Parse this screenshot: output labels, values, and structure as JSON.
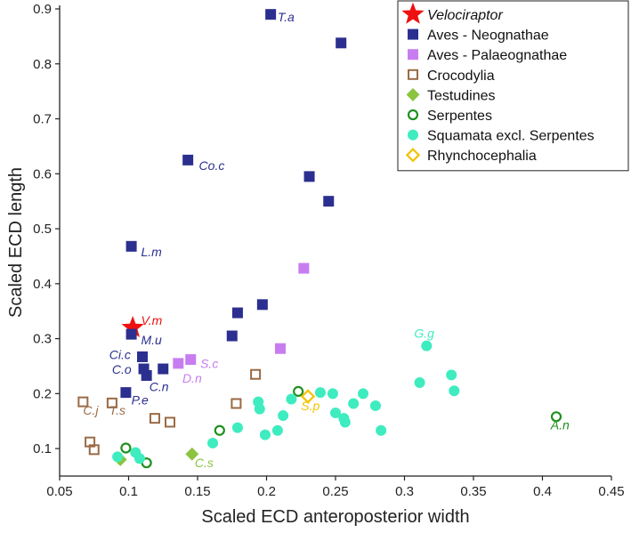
{
  "chart_data": {
    "type": "scatter",
    "xlabel": "Scaled ECD anteroposterior width",
    "ylabel": "Scaled ECD length",
    "xlim": [
      0.05,
      0.45
    ],
    "ylim": [
      0.05,
      0.9
    ],
    "xticks": [
      "0.05",
      "0.1",
      "0.15",
      "0.2",
      "0.25",
      "0.3",
      "0.35",
      "0.4",
      "0.45"
    ],
    "yticks": [
      "0.1",
      "0.2",
      "0.3",
      "0.4",
      "0.5",
      "0.6",
      "0.7",
      "0.8",
      "0.9"
    ],
    "grid": false,
    "legend_position": "top-right",
    "series": [
      {
        "name": "Velociraptor",
        "marker": "star",
        "color": "#ee1111",
        "italic": true,
        "points": [
          [
            0.103,
            0.32
          ]
        ]
      },
      {
        "name": "Aves - Neognathae",
        "marker": "square-filled",
        "color": "#2b2f8f",
        "points": [
          [
            0.203,
            0.89
          ],
          [
            0.254,
            0.838
          ],
          [
            0.143,
            0.625
          ],
          [
            0.231,
            0.595
          ],
          [
            0.245,
            0.55
          ],
          [
            0.102,
            0.468
          ],
          [
            0.197,
            0.362
          ],
          [
            0.179,
            0.347
          ],
          [
            0.175,
            0.305
          ],
          [
            0.102,
            0.308
          ],
          [
            0.11,
            0.267
          ],
          [
            0.111,
            0.245
          ],
          [
            0.113,
            0.233
          ],
          [
            0.125,
            0.245
          ],
          [
            0.098,
            0.202
          ]
        ]
      },
      {
        "name": "Aves - Palaeognathae",
        "marker": "square-filled",
        "color": "#c77df0",
        "points": [
          [
            0.227,
            0.428
          ],
          [
            0.145,
            0.262
          ],
          [
            0.136,
            0.255
          ],
          [
            0.21,
            0.282
          ]
        ]
      },
      {
        "name": "Crocodylia",
        "marker": "square-open",
        "color": "#9a6a44",
        "points": [
          [
            0.067,
            0.185
          ],
          [
            0.088,
            0.183
          ],
          [
            0.192,
            0.235
          ],
          [
            0.178,
            0.182
          ],
          [
            0.119,
            0.155
          ],
          [
            0.13,
            0.148
          ],
          [
            0.072,
            0.112
          ],
          [
            0.075,
            0.098
          ]
        ]
      },
      {
        "name": "Testudines",
        "marker": "diamond-filled",
        "color": "#8bc43f",
        "points": [
          [
            0.094,
            0.08
          ],
          [
            0.146,
            0.09
          ]
        ]
      },
      {
        "name": "Serpentes",
        "marker": "circle-open",
        "color": "#1f8f1f",
        "points": [
          [
            0.223,
            0.204
          ],
          [
            0.166,
            0.133
          ],
          [
            0.098,
            0.101
          ],
          [
            0.113,
            0.074
          ],
          [
            0.41,
            0.158
          ]
        ]
      },
      {
        "name": "Squamata excl. Serpentes",
        "marker": "circle-filled",
        "color": "#3eecc0",
        "points": [
          [
            0.092,
            0.085
          ],
          [
            0.105,
            0.093
          ],
          [
            0.108,
            0.082
          ],
          [
            0.161,
            0.11
          ],
          [
            0.179,
            0.138
          ],
          [
            0.194,
            0.185
          ],
          [
            0.195,
            0.172
          ],
          [
            0.199,
            0.125
          ],
          [
            0.208,
            0.133
          ],
          [
            0.212,
            0.16
          ],
          [
            0.218,
            0.19
          ],
          [
            0.239,
            0.202
          ],
          [
            0.248,
            0.2
          ],
          [
            0.25,
            0.165
          ],
          [
            0.256,
            0.155
          ],
          [
            0.257,
            0.148
          ],
          [
            0.263,
            0.182
          ],
          [
            0.27,
            0.2
          ],
          [
            0.279,
            0.178
          ],
          [
            0.283,
            0.133
          ],
          [
            0.316,
            0.287
          ],
          [
            0.311,
            0.22
          ],
          [
            0.334,
            0.234
          ],
          [
            0.336,
            0.205
          ]
        ]
      },
      {
        "name": "Rhynchocephalia",
        "marker": "diamond-open",
        "color": "#f2c200",
        "points": [
          [
            0.23,
            0.195
          ]
        ]
      }
    ],
    "annotations": [
      {
        "text": "T.a",
        "x": 0.208,
        "y": 0.877,
        "color": "#2b2f8f"
      },
      {
        "text": "Co.c",
        "x": 0.151,
        "y": 0.607,
        "color": "#2b2f8f"
      },
      {
        "text": "L.m",
        "x": 0.109,
        "y": 0.45,
        "color": "#2b2f8f"
      },
      {
        "text": "V.m",
        "x": 0.109,
        "y": 0.325,
        "color": "#ee1111"
      },
      {
        "text": "M.u",
        "x": 0.109,
        "y": 0.29,
        "color": "#2b2f8f"
      },
      {
        "text": "Ci.c",
        "x": 0.086,
        "y": 0.263,
        "color": "#2b2f8f"
      },
      {
        "text": "C.o",
        "x": 0.088,
        "y": 0.236,
        "color": "#2b2f8f"
      },
      {
        "text": "C.n",
        "x": 0.115,
        "y": 0.205,
        "color": "#2b2f8f"
      },
      {
        "text": "P.e",
        "x": 0.102,
        "y": 0.18,
        "color": "#2b2f8f"
      },
      {
        "text": "S.c",
        "x": 0.152,
        "y": 0.247,
        "color": "#c77df0"
      },
      {
        "text": "D.n",
        "x": 0.139,
        "y": 0.22,
        "color": "#c77df0"
      },
      {
        "text": "C.j",
        "x": 0.067,
        "y": 0.162,
        "color": "#9a6a44"
      },
      {
        "text": "T.s",
        "x": 0.086,
        "y": 0.162,
        "color": "#9a6a44"
      },
      {
        "text": "S.p",
        "x": 0.225,
        "y": 0.17,
        "color": "#f2c200"
      },
      {
        "text": "G.g",
        "x": 0.307,
        "y": 0.302,
        "color": "#3eecc0"
      },
      {
        "text": "A.n",
        "x": 0.406,
        "y": 0.135,
        "color": "#1f8f1f"
      },
      {
        "text": "C.s",
        "x": 0.148,
        "y": 0.066,
        "color": "#8bc43f"
      }
    ]
  }
}
